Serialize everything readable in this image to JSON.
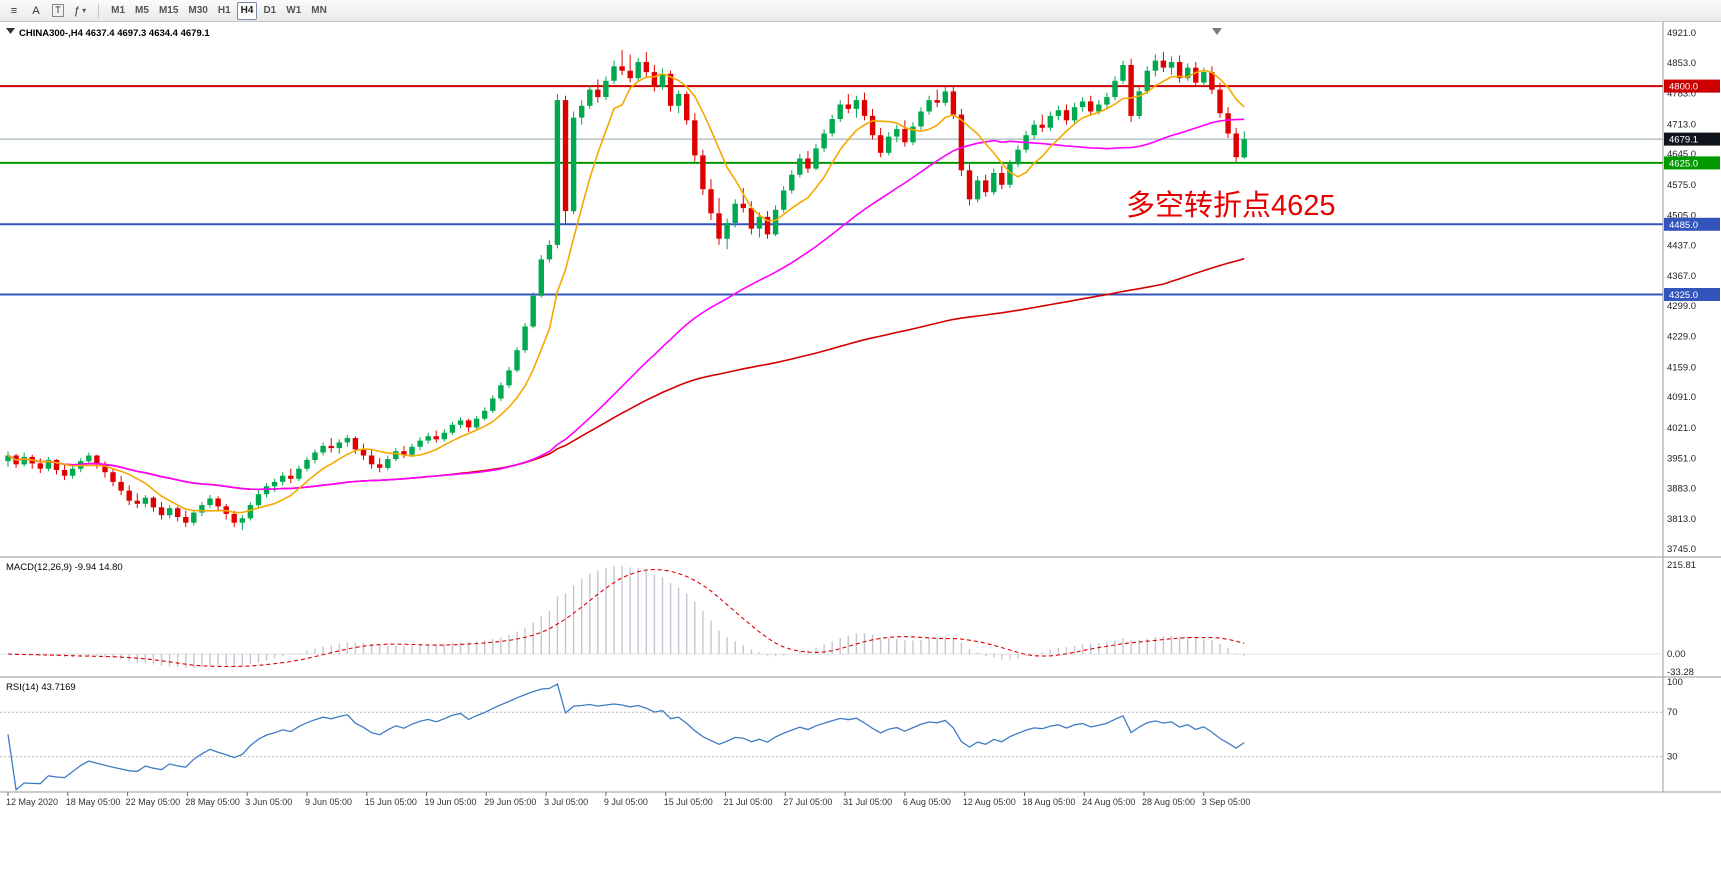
{
  "toolbar": {
    "icons": [
      {
        "name": "chart-windows-icon",
        "glyph": "≡"
      },
      {
        "name": "cursor-tool-icon",
        "glyph": "A"
      },
      {
        "name": "text-tool-icon",
        "glyph": "T"
      },
      {
        "name": "indicators-icon",
        "glyph": "ƒ"
      },
      {
        "name": "dropdown-caret-icon",
        "glyph": "▾"
      }
    ],
    "timeframes": [
      "M1",
      "M5",
      "M15",
      "M30",
      "H1",
      "H4",
      "D1",
      "W1",
      "MN"
    ],
    "selected_timeframe": "H4"
  },
  "chart_data": {
    "type": "candlestick",
    "title": "CHINA300-,H4",
    "ohlc_readout": "4637.4 4697.3 4634.4 4679.1",
    "up_color": "#00A94F",
    "down_color": "#E00000",
    "annotation": {
      "text": "多空转折点4625",
      "color": "#E60000"
    },
    "hlines": [
      {
        "value": 4800.0,
        "label": "4800.0",
        "color": "#CC0000",
        "badge": "#CC0000"
      },
      {
        "value": 4679.1,
        "label": "4679.1",
        "color": "#90A4AE",
        "badge": "#10141C",
        "price_line": true
      },
      {
        "value": 4625.0,
        "label": "4625.0",
        "color": "#009900",
        "badge": "#009900"
      },
      {
        "value": 4485.0,
        "label": "4485.0",
        "color": "#3355BB",
        "badge": "#3355BB"
      },
      {
        "value": 4325.0,
        "label": "4325.0",
        "color": "#3355BB",
        "badge": "#3355BB"
      }
    ],
    "moving_averages": [
      {
        "name": "fast",
        "period": 8,
        "color": "#F5A800"
      },
      {
        "name": "medium",
        "period": 55,
        "color": "#FF00FF"
      },
      {
        "name": "slow",
        "period": 144,
        "color": "#D40000"
      }
    ],
    "price_axis_labels": [
      "4921.0",
      "4853.0",
      "4783.0",
      "4713.0",
      "4645.0",
      "4575.0",
      "4505.0",
      "4437.0",
      "4367.0",
      "4299.0",
      "4229.0",
      "4159.0",
      "4091.0",
      "4021.0",
      "3951.0",
      "3883.0",
      "3813.0",
      "3745.0"
    ],
    "time_labels": [
      "12 May 2020",
      "18 May 05:00",
      "22 May 05:00",
      "28 May 05:00",
      "3 Jun 05:00",
      "9 Jun 05:00",
      "15 Jun 05:00",
      "19 Jun 05:00",
      "29 Jun 05:00",
      "3 Jul 05:00",
      "9 Jul 05:00",
      "15 Jul 05:00",
      "21 Jul 05:00",
      "27 Jul 05:00",
      "31 Jul 05:00",
      "6 Aug 05:00",
      "12 Aug 05:00",
      "18 Aug 05:00",
      "24 Aug 05:00",
      "28 Aug 05:00",
      "3 Sep 05:00"
    ],
    "candles": [
      [
        3945,
        3968,
        3932,
        3958
      ],
      [
        3958,
        3962,
        3930,
        3938
      ],
      [
        3938,
        3965,
        3933,
        3955
      ],
      [
        3955,
        3960,
        3928,
        3940
      ],
      [
        3940,
        3952,
        3918,
        3928
      ],
      [
        3928,
        3955,
        3922,
        3948
      ],
      [
        3948,
        3950,
        3915,
        3925
      ],
      [
        3925,
        3938,
        3902,
        3912
      ],
      [
        3912,
        3935,
        3905,
        3928
      ],
      [
        3928,
        3952,
        3920,
        3945
      ],
      [
        3945,
        3965,
        3938,
        3958
      ],
      [
        3958,
        3960,
        3928,
        3938
      ],
      [
        3938,
        3945,
        3908,
        3920
      ],
      [
        3920,
        3928,
        3888,
        3898
      ],
      [
        3898,
        3912,
        3868,
        3878
      ],
      [
        3878,
        3890,
        3845,
        3855
      ],
      [
        3855,
        3872,
        3838,
        3848
      ],
      [
        3848,
        3868,
        3840,
        3862
      ],
      [
        3862,
        3865,
        3830,
        3840
      ],
      [
        3840,
        3852,
        3812,
        3822
      ],
      [
        3822,
        3845,
        3815,
        3838
      ],
      [
        3838,
        3842,
        3808,
        3818
      ],
      [
        3818,
        3832,
        3795,
        3805
      ],
      [
        3805,
        3835,
        3798,
        3828
      ],
      [
        3828,
        3852,
        3820,
        3845
      ],
      [
        3845,
        3868,
        3838,
        3860
      ],
      [
        3860,
        3865,
        3832,
        3842
      ],
      [
        3842,
        3848,
        3812,
        3825
      ],
      [
        3825,
        3832,
        3795,
        3805
      ],
      [
        3805,
        3822,
        3788,
        3815
      ],
      [
        3815,
        3852,
        3810,
        3845
      ],
      [
        3845,
        3878,
        3840,
        3870
      ],
      [
        3870,
        3895,
        3862,
        3888
      ],
      [
        3888,
        3905,
        3875,
        3898
      ],
      [
        3898,
        3920,
        3890,
        3912
      ],
      [
        3912,
        3928,
        3895,
        3905
      ],
      [
        3905,
        3935,
        3900,
        3928
      ],
      [
        3928,
        3955,
        3922,
        3948
      ],
      [
        3948,
        3972,
        3940,
        3965
      ],
      [
        3965,
        3988,
        3958,
        3980
      ],
      [
        3980,
        3998,
        3965,
        3975
      ],
      [
        3975,
        3995,
        3962,
        3988
      ],
      [
        3988,
        4005,
        3978,
        3998
      ],
      [
        3998,
        4002,
        3962,
        3972
      ],
      [
        3972,
        3985,
        3948,
        3958
      ],
      [
        3958,
        3970,
        3928,
        3938
      ],
      [
        3938,
        3952,
        3920,
        3930
      ],
      [
        3930,
        3958,
        3925,
        3950
      ],
      [
        3950,
        3975,
        3945,
        3968
      ],
      [
        3968,
        3980,
        3952,
        3960
      ],
      [
        3960,
        3985,
        3955,
        3978
      ],
      [
        3978,
        4000,
        3970,
        3992
      ],
      [
        3992,
        4010,
        3985,
        4002
      ],
      [
        4002,
        4015,
        3988,
        3995
      ],
      [
        3995,
        4018,
        3990,
        4010
      ],
      [
        4010,
        4035,
        4005,
        4028
      ],
      [
        4028,
        4045,
        4020,
        4038
      ],
      [
        4038,
        4042,
        4012,
        4022
      ],
      [
        4022,
        4048,
        4018,
        4042
      ],
      [
        4042,
        4068,
        4038,
        4060
      ],
      [
        4060,
        4095,
        4055,
        4088
      ],
      [
        4088,
        4125,
        4082,
        4118
      ],
      [
        4118,
        4160,
        4112,
        4152
      ],
      [
        4152,
        4205,
        4148,
        4198
      ],
      [
        4198,
        4260,
        4192,
        4252
      ],
      [
        4252,
        4330,
        4248,
        4322
      ],
      [
        4322,
        4415,
        4318,
        4405
      ],
      [
        4405,
        4448,
        4398,
        4438
      ],
      [
        4438,
        4782,
        4430,
        4768
      ],
      [
        4768,
        4778,
        4487,
        4515
      ],
      [
        4515,
        4742,
        4508,
        4728
      ],
      [
        4728,
        4768,
        4712,
        4755
      ],
      [
        4755,
        4802,
        4748,
        4792
      ],
      [
        4792,
        4815,
        4762,
        4775
      ],
      [
        4775,
        4822,
        4768,
        4812
      ],
      [
        4812,
        4858,
        4805,
        4845
      ],
      [
        4845,
        4882,
        4825,
        4835
      ],
      [
        4835,
        4872,
        4808,
        4818
      ],
      [
        4818,
        4865,
        4812,
        4855
      ],
      [
        4855,
        4878,
        4822,
        4832
      ],
      [
        4832,
        4848,
        4788,
        4798
      ],
      [
        4798,
        4840,
        4792,
        4828
      ],
      [
        4828,
        4835,
        4742,
        4755
      ],
      [
        4755,
        4790,
        4738,
        4782
      ],
      [
        4782,
        4788,
        4712,
        4722
      ],
      [
        4722,
        4738,
        4628,
        4642
      ],
      [
        4642,
        4655,
        4552,
        4565
      ],
      [
        4565,
        4588,
        4495,
        4510
      ],
      [
        4510,
        4545,
        4438,
        4452
      ],
      [
        4452,
        4498,
        4428,
        4488
      ],
      [
        4488,
        4542,
        4478,
        4532
      ],
      [
        4532,
        4568,
        4512,
        4522
      ],
      [
        4522,
        4538,
        4462,
        4475
      ],
      [
        4475,
        4512,
        4455,
        4502
      ],
      [
        4502,
        4515,
        4452,
        4462
      ],
      [
        4462,
        4528,
        4458,
        4518
      ],
      [
        4518,
        4572,
        4512,
        4562
      ],
      [
        4562,
        4608,
        4555,
        4598
      ],
      [
        4598,
        4645,
        4592,
        4635
      ],
      [
        4635,
        4652,
        4602,
        4612
      ],
      [
        4612,
        4668,
        4608,
        4658
      ],
      [
        4658,
        4702,
        4650,
        4692
      ],
      [
        4692,
        4735,
        4685,
        4725
      ],
      [
        4725,
        4768,
        4718,
        4758
      ],
      [
        4758,
        4782,
        4738,
        4748
      ],
      [
        4748,
        4778,
        4728,
        4768
      ],
      [
        4768,
        4785,
        4722,
        4732
      ],
      [
        4732,
        4748,
        4678,
        4688
      ],
      [
        4688,
        4705,
        4638,
        4648
      ],
      [
        4648,
        4695,
        4642,
        4685
      ],
      [
        4685,
        4712,
        4672,
        4702
      ],
      [
        4702,
        4722,
        4662,
        4672
      ],
      [
        4672,
        4718,
        4665,
        4708
      ],
      [
        4708,
        4752,
        4700,
        4742
      ],
      [
        4742,
        4778,
        4735,
        4768
      ],
      [
        4768,
        4792,
        4752,
        4762
      ],
      [
        4762,
        4798,
        4755,
        4788
      ],
      [
        4788,
        4802,
        4725,
        4735
      ],
      [
        4735,
        4748,
        4595,
        4608
      ],
      [
        4608,
        4622,
        4528,
        4542
      ],
      [
        4542,
        4595,
        4535,
        4585
      ],
      [
        4585,
        4598,
        4548,
        4558
      ],
      [
        4558,
        4612,
        4552,
        4602
      ],
      [
        4602,
        4618,
        4565,
        4575
      ],
      [
        4575,
        4632,
        4568,
        4622
      ],
      [
        4622,
        4665,
        4615,
        4655
      ],
      [
        4655,
        4698,
        4648,
        4688
      ],
      [
        4688,
        4722,
        4678,
        4712
      ],
      [
        4712,
        4735,
        4695,
        4705
      ],
      [
        4705,
        4742,
        4698,
        4732
      ],
      [
        4732,
        4755,
        4722,
        4745
      ],
      [
        4745,
        4758,
        4712,
        4722
      ],
      [
        4722,
        4762,
        4715,
        4752
      ],
      [
        4752,
        4775,
        4742,
        4765
      ],
      [
        4765,
        4778,
        4732,
        4742
      ],
      [
        4742,
        4768,
        4735,
        4758
      ],
      [
        4758,
        4785,
        4748,
        4775
      ],
      [
        4775,
        4822,
        4768,
        4812
      ],
      [
        4812,
        4858,
        4805,
        4848
      ],
      [
        4848,
        4862,
        4718,
        4732
      ],
      [
        4732,
        4798,
        4725,
        4788
      ],
      [
        4788,
        4845,
        4782,
        4835
      ],
      [
        4835,
        4872,
        4822,
        4858
      ],
      [
        4858,
        4878,
        4832,
        4842
      ],
      [
        4842,
        4868,
        4825,
        4855
      ],
      [
        4855,
        4870,
        4808,
        4818
      ],
      [
        4818,
        4852,
        4812,
        4842
      ],
      [
        4842,
        4855,
        4798,
        4808
      ],
      [
        4808,
        4842,
        4800,
        4832
      ],
      [
        4832,
        4845,
        4782,
        4792
      ],
      [
        4792,
        4808,
        4728,
        4738
      ],
      [
        4738,
        4752,
        4682,
        4692
      ],
      [
        4692,
        4705,
        4628,
        4638
      ],
      [
        4637.4,
        4697.3,
        4634.4,
        4679.1
      ]
    ],
    "macd": {
      "label": "MACD(12,26,9)",
      "values": "-9.94 14.80",
      "fast": 12,
      "slow": 26,
      "signal": 9,
      "axis_labels": [
        "215.81",
        "0.00",
        "-33.28"
      ],
      "hist_color": "#C6C6D2",
      "signal_color": "#E00000"
    },
    "rsi": {
      "label": "RSI(14)",
      "value": "43.7169",
      "period": 14,
      "levels": [
        70,
        30
      ],
      "axis_labels": [
        "100",
        "70",
        "30"
      ],
      "line_color": "#3E7BC6"
    }
  }
}
